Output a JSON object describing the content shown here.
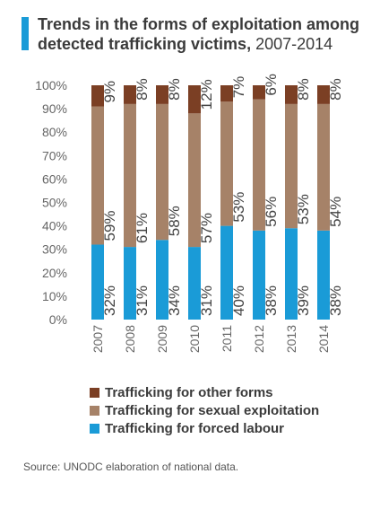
{
  "title": {
    "main": "Trends in the forms of exploitation among detected trafficking victims,",
    "years": "2007-2014"
  },
  "colors": {
    "forced_labour": "#1a9bd7",
    "sexual": "#a68268",
    "other": "#7b3f24",
    "accent_bar": "#1a9bd7"
  },
  "chart_data": {
    "type": "bar",
    "stacked": true,
    "categories": [
      "2007",
      "2008",
      "2009",
      "2010",
      "2011",
      "2012",
      "2013",
      "2014"
    ],
    "series": [
      {
        "name": "Trafficking for forced labour",
        "values": [
          32,
          31,
          34,
          31,
          40,
          38,
          39,
          38
        ]
      },
      {
        "name": "Trafficking for sexual exploitation",
        "values": [
          59,
          61,
          58,
          57,
          53,
          56,
          53,
          54
        ]
      },
      {
        "name": "Trafficking for other forms",
        "values": [
          9,
          8,
          8,
          12,
          7,
          6,
          8,
          8
        ]
      }
    ],
    "ylim": [
      0,
      100
    ],
    "yticks": [
      "0%",
      "10%",
      "20%",
      "30%",
      "40%",
      "50%",
      "60%",
      "70%",
      "80%",
      "90%",
      "100%"
    ],
    "value_label_suffix": "%",
    "legend_position": "bottom"
  },
  "legend": [
    {
      "label": "Trafficking for other forms",
      "color_key": "other"
    },
    {
      "label": "Trafficking for sexual exploitation",
      "color_key": "sexual"
    },
    {
      "label": "Trafficking for forced labour",
      "color_key": "forced_labour"
    }
  ],
  "source": "Source: UNODC elaboration of national data."
}
